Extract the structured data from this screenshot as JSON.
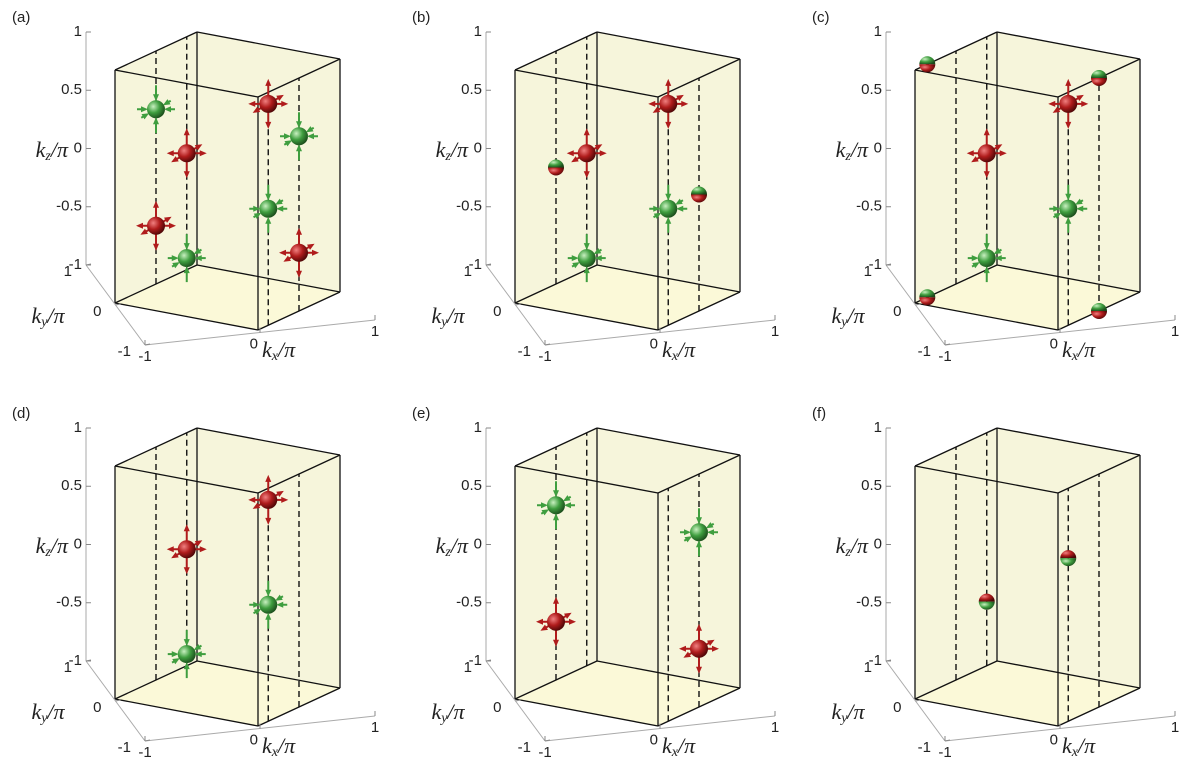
{
  "chart_data": [
    {
      "type": "scatter3d",
      "label": "(a)",
      "xlabel": "k_x/π",
      "ylabel": "k_y/π",
      "zlabel": "k_z/π",
      "xlim": [
        -1,
        1
      ],
      "ylim": [
        -1,
        1
      ],
      "zlim": [
        -1,
        1
      ],
      "xticks": [
        -1,
        0,
        1
      ],
      "yticks": [
        -1,
        0,
        1
      ],
      "zticks": [
        -1,
        -0.5,
        0,
        0.5,
        1
      ],
      "lines": {
        "x": [
          -1,
          -1,
          1,
          1
        ],
        "y": [
          0,
          0.75,
          -0.75,
          0
        ]
      },
      "series": [
        {
          "marker": "source",
          "color": "#b01c1c",
          "x": [
            -1,
            -1,
            1,
            1
          ],
          "y": [
            0.75,
            0,
            -0.75,
            0
          ],
          "z": [
            0,
            -0.5,
            0.9,
            -0.5
          ]
        },
        {
          "marker": "sink",
          "color": "#3f9e3f",
          "x": [
            -1,
            -1,
            1,
            1
          ],
          "y": [
            0,
            0.75,
            -0.75,
            0
          ],
          "z": [
            0.5,
            -0.9,
            0,
            0.5
          ]
        }
      ]
    },
    {
      "type": "scatter3d",
      "label": "(b)",
      "xlabel": "k_x/π",
      "ylabel": "k_y/π",
      "zlabel": "k_z/π",
      "xlim": [
        -1,
        1
      ],
      "ylim": [
        -1,
        1
      ],
      "zlim": [
        -1,
        1
      ],
      "xticks": [
        -1,
        0,
        1
      ],
      "yticks": [
        -1,
        0,
        1
      ],
      "zticks": [
        -1,
        -0.5,
        0,
        0.5,
        1
      ],
      "lines": {
        "x": [
          -1,
          -1,
          1,
          1
        ],
        "y": [
          0,
          0.75,
          -0.75,
          0
        ]
      },
      "series": [
        {
          "marker": "source",
          "color": "#b01c1c",
          "x": [
            -1,
            1
          ],
          "y": [
            0.75,
            -0.75
          ],
          "z": [
            0,
            0.9
          ]
        },
        {
          "marker": "sink",
          "color": "#3f9e3f",
          "x": [
            1,
            -1
          ],
          "y": [
            -0.75,
            0.75
          ],
          "z": [
            0,
            -0.9
          ]
        },
        {
          "marker": "split",
          "colors": [
            "#3f9e3f",
            "#b01c1c"
          ],
          "x": [
            -1,
            1
          ],
          "y": [
            0,
            0
          ],
          "z": [
            0,
            0
          ]
        }
      ]
    },
    {
      "type": "scatter3d",
      "label": "(c)",
      "xlabel": "k_x/π",
      "ylabel": "k_y/π",
      "zlabel": "k_z/π",
      "xlim": [
        -1,
        1
      ],
      "ylim": [
        -1,
        1
      ],
      "zlim": [
        -1,
        1
      ],
      "xticks": [
        -1,
        0,
        1
      ],
      "yticks": [
        -1,
        0,
        1
      ],
      "zticks": [
        -1,
        -0.5,
        0,
        0.5,
        1
      ],
      "lines": {
        "x": [
          -1,
          -1,
          1,
          1
        ],
        "y": [
          0,
          0.75,
          -0.75,
          0
        ]
      },
      "series": [
        {
          "marker": "source",
          "color": "#b01c1c",
          "x": [
            -1,
            1
          ],
          "y": [
            0.75,
            -0.75
          ],
          "z": [
            0,
            0.9
          ]
        },
        {
          "marker": "sink",
          "color": "#3f9e3f",
          "x": [
            1,
            -1
          ],
          "y": [
            -0.75,
            0.75
          ],
          "z": [
            0,
            -0.9
          ]
        },
        {
          "marker": "split",
          "colors": [
            "#3f9e3f",
            "#b01c1c"
          ],
          "x": [
            -1,
            -1,
            1,
            1
          ],
          "y": [
            -0.7,
            -0.7,
            0,
            0
          ],
          "z": [
            1,
            -1,
            1,
            -1
          ]
        }
      ]
    },
    {
      "type": "scatter3d",
      "label": "(d)",
      "xlabel": "k_x/π",
      "ylabel": "k_y/π",
      "zlabel": "k_z/π",
      "xlim": [
        -1,
        1
      ],
      "ylim": [
        -1,
        1
      ],
      "zlim": [
        -1,
        1
      ],
      "xticks": [
        -1,
        0,
        1
      ],
      "yticks": [
        -1,
        0,
        1
      ],
      "zticks": [
        -1,
        -0.5,
        0,
        0.5,
        1
      ],
      "lines": {
        "x": [
          -1,
          -1,
          1,
          1
        ],
        "y": [
          0,
          0.75,
          -0.75,
          0
        ]
      },
      "series": [
        {
          "marker": "source",
          "color": "#b01c1c",
          "x": [
            -1,
            1
          ],
          "y": [
            0.75,
            -0.75
          ],
          "z": [
            0,
            0.9
          ]
        },
        {
          "marker": "sink",
          "color": "#3f9e3f",
          "x": [
            1,
            -1
          ],
          "y": [
            -0.75,
            0.75
          ],
          "z": [
            0,
            -0.9
          ]
        }
      ]
    },
    {
      "type": "scatter3d",
      "label": "(e)",
      "xlabel": "k_x/π",
      "ylabel": "k_y/π",
      "zlabel": "k_z/π",
      "xlim": [
        -1,
        1
      ],
      "ylim": [
        -1,
        1
      ],
      "zlim": [
        -1,
        1
      ],
      "xticks": [
        -1,
        0,
        1
      ],
      "yticks": [
        -1,
        0,
        1
      ],
      "zticks": [
        -1,
        -0.5,
        0,
        0.5,
        1
      ],
      "lines": {
        "x": [
          -1,
          -1,
          1,
          1
        ],
        "y": [
          0,
          0.75,
          -0.75,
          0
        ]
      },
      "series": [
        {
          "marker": "source",
          "color": "#b01c1c",
          "x": [
            -1,
            1
          ],
          "y": [
            0,
            0
          ],
          "z": [
            -0.5,
            -0.5
          ]
        },
        {
          "marker": "sink",
          "color": "#3f9e3f",
          "x": [
            -1,
            1
          ],
          "y": [
            0,
            0
          ],
          "z": [
            0.5,
            0.5
          ]
        }
      ]
    },
    {
      "type": "scatter3d",
      "label": "(f)",
      "xlabel": "k_x/π",
      "ylabel": "k_y/π",
      "zlabel": "k_z/π",
      "xlim": [
        -1,
        1
      ],
      "ylim": [
        -1,
        1
      ],
      "zlim": [
        -1,
        1
      ],
      "xticks": [
        -1,
        0,
        1
      ],
      "yticks": [
        -1,
        0,
        1
      ],
      "zticks": [
        -1,
        -0.5,
        0,
        0.5,
        1
      ],
      "lines": {
        "x": [
          -1,
          -1,
          1,
          1
        ],
        "y": [
          0,
          0.75,
          -0.75,
          0
        ]
      },
      "series": [
        {
          "marker": "split",
          "colors": [
            "#b01c1c",
            "#3f9e3f"
          ],
          "x": [
            1,
            -1
          ],
          "y": [
            -0.75,
            0.75
          ],
          "z": [
            0.4,
            -0.45
          ]
        }
      ]
    }
  ]
}
